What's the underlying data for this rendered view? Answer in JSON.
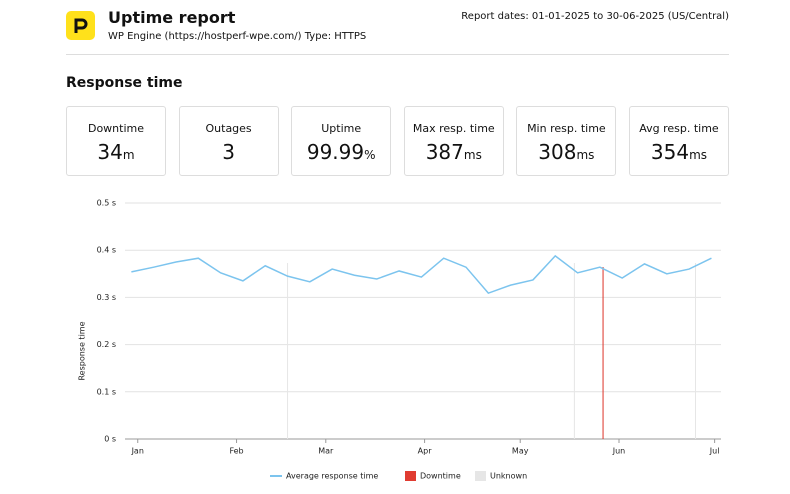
{
  "header": {
    "title": "Uptime report",
    "subtitle": "WP Engine (https://hostperf-wpe.com/) Type: HTTPS",
    "report_dates": "Report dates: 01-01-2025 to 30-06-2025 (US/Central)"
  },
  "section_title": "Response time",
  "stats": [
    {
      "label": "Downtime",
      "value": "34",
      "unit": "m"
    },
    {
      "label": "Outages",
      "value": "3"
    },
    {
      "label": "Uptime",
      "value": "99.99",
      "unit": "%"
    },
    {
      "label": "Max resp. time",
      "value": "387",
      "unit": "ms"
    },
    {
      "label": "Min resp. time",
      "value": "308",
      "unit": "ms"
    },
    {
      "label": "Avg resp. time",
      "value": "354",
      "unit": "ms"
    }
  ],
  "chart_data": {
    "type": "line",
    "y_label": "Response time",
    "x": [
      -2,
      5,
      12,
      19,
      26,
      33,
      40,
      47,
      54,
      61,
      68,
      75,
      82,
      89,
      96,
      103,
      110,
      117,
      124,
      131,
      138,
      145,
      152,
      159,
      166,
      173,
      180
    ],
    "series": [
      {
        "name": "Average response time",
        "color": "#7cc4ee",
        "values": [
          0.354,
          0.364,
          0.375,
          0.383,
          0.352,
          0.335,
          0.367,
          0.345,
          0.333,
          0.36,
          0.347,
          0.339,
          0.356,
          0.343,
          0.383,
          0.364,
          0.309,
          0.326,
          0.337,
          0.388,
          0.352,
          0.364,
          0.341,
          0.371,
          0.35,
          0.36,
          0.383
        ]
      }
    ],
    "downtime": {
      "name": "Downtime",
      "color": "#e03c31",
      "x": [
        146
      ]
    },
    "unknown": {
      "name": "Unknown",
      "color": "#e6e6e6",
      "x": [
        47,
        137,
        175
      ]
    },
    "xlim": [
      -4,
      183
    ],
    "xticks": [
      {
        "value": 0,
        "label": "Jan"
      },
      {
        "value": 31,
        "label": "Feb"
      },
      {
        "value": 59,
        "label": "Mar"
      },
      {
        "value": 90,
        "label": "Apr"
      },
      {
        "value": 120,
        "label": "May"
      },
      {
        "value": 151,
        "label": "Jun"
      },
      {
        "value": 181,
        "label": "Jul"
      }
    ],
    "ylim": [
      0,
      0.5
    ],
    "yticks": [
      {
        "value": 0,
        "label": "0 s"
      },
      {
        "value": 0.1,
        "label": "0.1 s"
      },
      {
        "value": 0.2,
        "label": "0.2 s"
      },
      {
        "value": 0.3,
        "label": "0.3 s"
      },
      {
        "value": 0.4,
        "label": "0.4 s"
      },
      {
        "value": 0.5,
        "label": "0.5 s"
      }
    ],
    "grid": true
  }
}
